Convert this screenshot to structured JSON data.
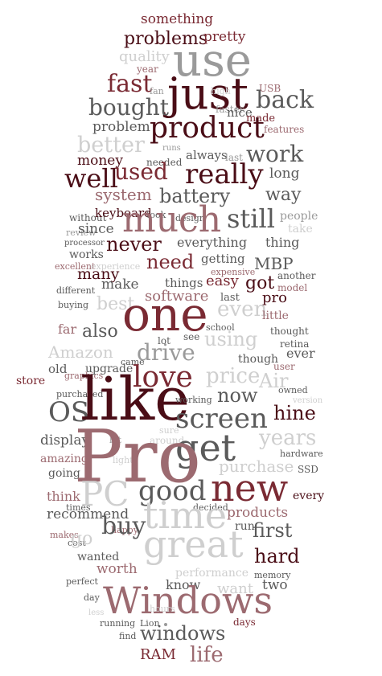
{
  "words": [
    "something",
    "problems",
    "pretty",
    "use",
    "quality",
    "year",
    "just",
    "fast",
    "fan",
    "USB",
    "faster",
    "high",
    "nice",
    "made",
    "back",
    "bought",
    "product",
    "problem",
    "features",
    "better",
    "runs",
    "needed",
    "money",
    "always",
    "last",
    "work",
    "well",
    "used",
    "really",
    "long",
    "system",
    "battery",
    "way",
    "without",
    "keyboard",
    "took",
    "design",
    "people",
    "much",
    "still",
    "review",
    "since",
    "take",
    "processor",
    "never",
    "everything",
    "thing",
    "works",
    "excellent",
    "experience",
    "need",
    "getting",
    "MBP",
    "expensive",
    "another",
    "many",
    "different",
    "make",
    "things",
    "easy",
    "got",
    "model",
    "software",
    "last",
    "buying",
    "best",
    "one",
    "even",
    "pro",
    "far",
    "also",
    "school",
    "little",
    "see",
    "using",
    "thought",
    "lot",
    "retina",
    "ever",
    "Amazon",
    "drive",
    "came",
    "though",
    "user",
    "old",
    "graphics",
    "upgrade",
    "store",
    "love",
    "price",
    "Air",
    "owned",
    "purchased",
    "OS",
    "like",
    "now",
    "hine",
    "version",
    "working",
    "screen",
    "sure",
    "display",
    "bit",
    "years",
    "around",
    "amazing",
    "get",
    "hardware",
    "light",
    "going",
    "Pro",
    "purchase",
    "SSD",
    "PC",
    "good",
    "new",
    "every",
    "think",
    "times",
    "recommend",
    "decided",
    "products",
    "makes",
    "cost",
    "time",
    "first",
    "run",
    "happy",
    "go",
    "buy",
    "great",
    "wanted",
    "hard",
    "perfect",
    "worth",
    "performance",
    "memory",
    "day",
    "know",
    "want",
    "two",
    "less",
    "Windows",
    "hours",
    "running",
    "Lion",
    "windows",
    "days",
    "find",
    "RAM",
    "life"
  ]
}
